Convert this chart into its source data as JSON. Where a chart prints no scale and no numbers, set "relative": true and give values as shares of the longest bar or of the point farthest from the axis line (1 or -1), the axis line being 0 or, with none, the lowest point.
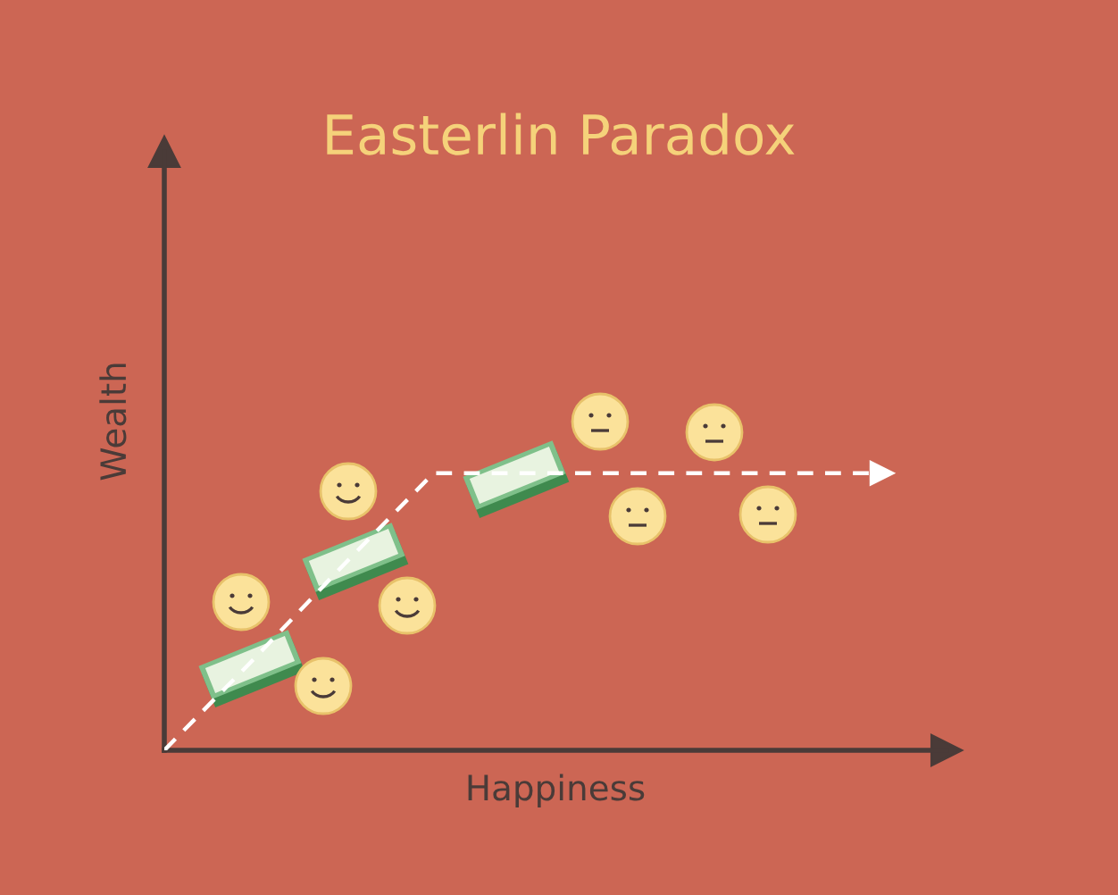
{
  "chart_data": {
    "type": "line",
    "title": "Easterlin Paradox",
    "xlabel": "Happiness",
    "ylabel": "Wealth",
    "relative": true,
    "categories": [
      null,
      null,
      null,
      null,
      null,
      null,
      null,
      null,
      null
    ],
    "series": [
      {
        "color": "#ffffff",
        "values": [
          0,
          0.33,
          0.67,
          1,
          1,
          1,
          1,
          1,
          1
        ]
      }
    ],
    "line_style": "dashed",
    "marker": "none"
  }
}
